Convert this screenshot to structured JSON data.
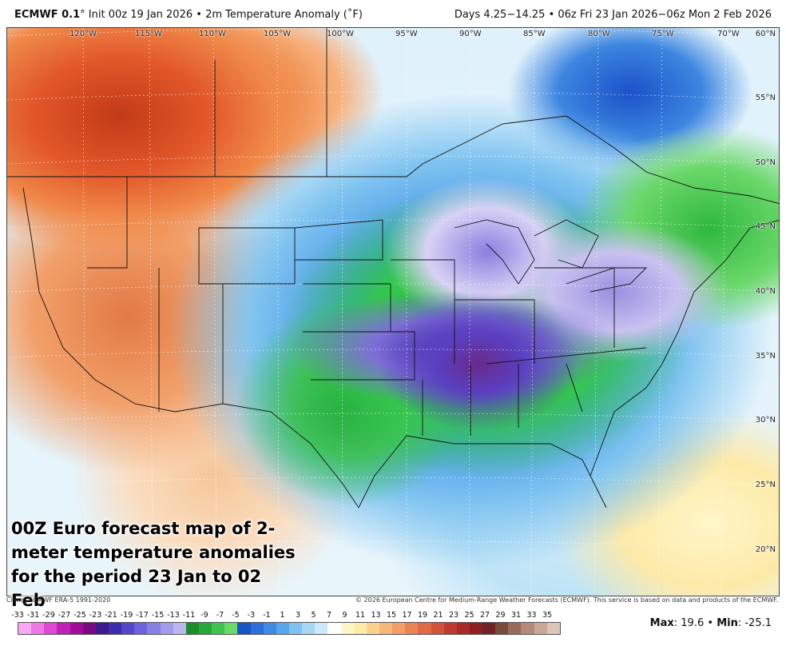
{
  "header": {
    "model": "ECMWF 0.1",
    "degree_symbol": "°",
    "init": "Init 00z 19 Jan 2026",
    "bullet": "•",
    "field": "2m Temperature Anomaly (˚F)",
    "valid": "Days 4.25−14.25 • 06z Fri 23 Jan 2026−06z Mon 2 Feb 2026"
  },
  "map": {
    "lon_labels": [
      "120°W",
      "115°W",
      "110°W",
      "105°W",
      "100°W",
      "95°W",
      "90°W",
      "85°W",
      "80°W",
      "75°W",
      "70°W"
    ],
    "lat_labels": [
      "60°N",
      "55°N",
      "50°N",
      "45°N",
      "40°N",
      "35°N",
      "30°N",
      "25°N",
      "20°N"
    ],
    "annotation_lines": [
      "00Z Euro forecast map of 2-",
      "meter temperature anomalies",
      "for the period 23 Jan to 02 Feb"
    ]
  },
  "footer": {
    "climo": "Climo: ECMWF ERA-5 1991-2020",
    "copyright": "© 2026 European Centre for Medium-Range Weather Forecasts (ECMWF). This service is based on data and products of the ECMWF."
  },
  "colorbar": {
    "labels": [
      "-33",
      "-31",
      "-29",
      "-27",
      "-25",
      "-23",
      "-21",
      "-19",
      "-17",
      "-15",
      "-13",
      "-11",
      "-9",
      "-7",
      "-5",
      "-3",
      "-1",
      "1",
      "3",
      "5",
      "7",
      "9",
      "11",
      "13",
      "15",
      "17",
      "19",
      "21",
      "23",
      "25",
      "27",
      "29",
      "31",
      "33",
      "35"
    ],
    "colors": [
      "#f7a8f0",
      "#ee78e4",
      "#df48d2",
      "#c020b8",
      "#a00c98",
      "#7a0a80",
      "#3c1a8e",
      "#3d2cb0",
      "#5446c8",
      "#6e63d8",
      "#8a80e2",
      "#a39ce8",
      "#bcb6ee",
      "#1a8e2a",
      "#26a83a",
      "#3fc24f",
      "#6bd86a",
      "#1b52c8",
      "#2f6fd8",
      "#3f8ae2",
      "#5aa6ea",
      "#7fc1f0",
      "#a6d8f4",
      "#cbe9f8",
      "#ffffff",
      "#fff6c8",
      "#fde9a8",
      "#f9d38a",
      "#f6b87a",
      "#f29e66",
      "#ea8454",
      "#e06a44",
      "#d2523a",
      "#c03a30",
      "#a82a28",
      "#8e2020",
      "#6e2424",
      "#7a4a3a",
      "#9a6a5a",
      "#b48a7a",
      "#c9a898",
      "#dcc6ba"
    ]
  },
  "maxmin": {
    "max_label": "Max",
    "max_value": "19.6",
    "min_label": "Min",
    "min_value": "-25.1",
    "sep": "•"
  }
}
